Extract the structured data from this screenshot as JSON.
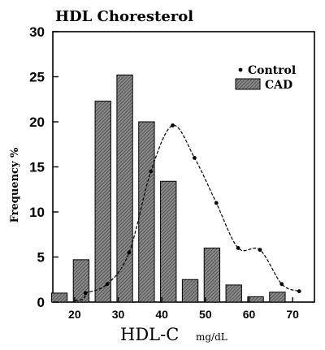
{
  "chart_data": {
    "type": "bar",
    "title": "HDL Choresterol",
    "xlabel_main": "HDL-C",
    "xlabel_unit": "mg/dL",
    "ylabel": "Frequency %",
    "xlim": [
      15,
      75
    ],
    "ylim": [
      0,
      30
    ],
    "xticks": [
      20,
      30,
      40,
      50,
      60,
      70
    ],
    "yticks": [
      0,
      5,
      10,
      15,
      20,
      25,
      30
    ],
    "legend_position": "top-right",
    "series": [
      {
        "name": "CAD",
        "kind": "bar",
        "x": [
          16.5,
          21.5,
          26.5,
          31.5,
          36.5,
          41.5,
          46.5,
          51.5,
          56.5,
          61.5,
          66.5
        ],
        "values": [
          1.0,
          4.7,
          22.3,
          25.2,
          20.0,
          13.4,
          2.5,
          6.0,
          1.9,
          0.6,
          1.1
        ]
      },
      {
        "name": "Control",
        "kind": "line",
        "x": [
          22.5,
          27.5,
          32.5,
          37.5,
          42.5,
          47.5,
          52.5,
          57.5,
          62.5,
          67.5,
          71.5
        ],
        "values": [
          1.0,
          2.0,
          5.5,
          14.5,
          19.6,
          16.0,
          11.0,
          6.0,
          5.8,
          2.0,
          1.2
        ]
      }
    ]
  }
}
